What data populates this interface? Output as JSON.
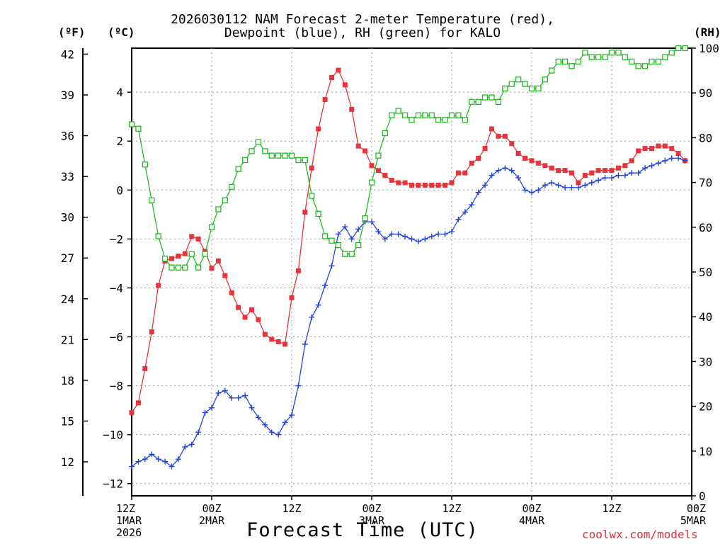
{
  "header": {
    "title_line1": "2026030112 NAM Forecast 2-meter Temperature (red),",
    "title_line2": "Dewpoint (blue), RH (green) for KALO",
    "unit_f": "(ºF)",
    "unit_c": "(ºC)",
    "unit_rh": "(RH)"
  },
  "footer": {
    "xlabel": "Forecast Time (UTC)",
    "credit": "coolwx.com/models"
  },
  "chart_data": {
    "type": "line",
    "title": "2026030112 NAM Forecast 2-meter Temperature (red), Dewpoint (blue), RH (green) for KALO",
    "xlabel": "Forecast Time (UTC)",
    "x_unit": "forecast hour",
    "xlim": [
      0,
      84
    ],
    "x_ticks": [
      {
        "hour": 0,
        "lines": [
          "12Z",
          "1MAR",
          "2026"
        ]
      },
      {
        "hour": 12,
        "lines": [
          "00Z",
          "2MAR"
        ]
      },
      {
        "hour": 24,
        "lines": [
          "12Z"
        ]
      },
      {
        "hour": 36,
        "lines": [
          "00Z",
          "3MAR"
        ]
      },
      {
        "hour": 48,
        "lines": [
          "12Z"
        ]
      },
      {
        "hour": 60,
        "lines": [
          "00Z",
          "4MAR"
        ]
      },
      {
        "hour": 72,
        "lines": [
          "12Z"
        ]
      },
      {
        "hour": 84,
        "lines": [
          "00Z",
          "5MAR"
        ]
      }
    ],
    "y_left_c": {
      "label": "(ºC)",
      "ylim": [
        -12.5,
        5.8
      ],
      "ticks": [
        4,
        2,
        0,
        -2,
        -4,
        -6,
        -8,
        -10,
        -12
      ],
      "tick_labels": [
        "4",
        "2",
        "0",
        "−2",
        "−4",
        "−6",
        "−8",
        "−10",
        "−12"
      ]
    },
    "y_left_f": {
      "label": "(ºF)",
      "ticks": [
        42,
        39,
        36,
        33,
        30,
        27,
        24,
        21,
        18,
        15,
        12
      ]
    },
    "y_right": {
      "label": "(RH)",
      "ylim": [
        0,
        100
      ],
      "ticks": [
        100,
        90,
        80,
        70,
        60,
        50,
        40,
        30,
        20,
        10,
        0
      ]
    },
    "grid": true,
    "series": [
      {
        "name": "2-meter Temperature",
        "units": "C",
        "axis": "left",
        "color": "#e8333b",
        "marker": "filled-square",
        "values": [
          -9.1,
          -8.7,
          -7.3,
          -5.8,
          -3.9,
          -2.9,
          -2.8,
          -2.7,
          -2.6,
          -1.9,
          -2.0,
          -2.5,
          -3.2,
          -2.9,
          -3.5,
          -4.2,
          -4.8,
          -5.2,
          -4.9,
          -5.3,
          -5.9,
          -6.1,
          -6.2,
          -6.3,
          -4.4,
          -3.3,
          -0.9,
          0.9,
          2.5,
          3.7,
          4.6,
          4.9,
          4.3,
          3.3,
          1.8,
          1.6,
          1.0,
          0.8,
          0.6,
          0.4,
          0.3,
          0.3,
          0.2,
          0.2,
          0.2,
          0.2,
          0.2,
          0.2,
          0.3,
          0.7,
          0.7,
          1.1,
          1.3,
          1.7,
          2.5,
          2.2,
          2.2,
          1.9,
          1.5,
          1.3,
          1.2,
          1.1,
          1.0,
          0.9,
          0.8,
          0.8,
          0.7,
          0.3,
          0.6,
          0.7,
          0.8,
          0.8,
          0.8,
          0.9,
          1.0,
          1.2,
          1.6,
          1.7,
          1.7,
          1.8,
          1.8,
          1.7,
          1.5,
          1.2
        ]
      },
      {
        "name": "Dewpoint",
        "units": "C",
        "axis": "left",
        "color": "#2244e0",
        "marker": "plus",
        "values": [
          -11.3,
          -11.1,
          -11.0,
          -10.8,
          -11.0,
          -11.1,
          -11.3,
          -11.0,
          -10.5,
          -10.4,
          -9.9,
          -9.1,
          -8.9,
          -8.3,
          -8.2,
          -8.5,
          -8.5,
          -8.4,
          -8.9,
          -9.3,
          -9.6,
          -9.9,
          -10.0,
          -9.5,
          -9.2,
          -8.0,
          -6.3,
          -5.2,
          -4.7,
          -3.9,
          -3.1,
          -1.8,
          -1.5,
          -2.0,
          -1.6,
          -1.3,
          -1.3,
          -1.7,
          -2.0,
          -1.8,
          -1.8,
          -1.9,
          -2.0,
          -2.1,
          -2.0,
          -1.9,
          -1.8,
          -1.8,
          -1.7,
          -1.2,
          -0.9,
          -0.6,
          -0.1,
          0.2,
          0.6,
          0.8,
          0.9,
          0.8,
          0.5,
          0.0,
          -0.1,
          0.0,
          0.2,
          0.3,
          0.2,
          0.1,
          0.1,
          0.1,
          0.2,
          0.3,
          0.4,
          0.5,
          0.5,
          0.6,
          0.6,
          0.7,
          0.7,
          0.9,
          1.0,
          1.1,
          1.2,
          1.3,
          1.3,
          1.2
        ]
      },
      {
        "name": "RH",
        "units": "%",
        "axis": "right",
        "color": "#22bb22",
        "marker": "open-square",
        "values": [
          83,
          82,
          74,
          66,
          58,
          53,
          51,
          51,
          51,
          54,
          51,
          54,
          60,
          64,
          66,
          69,
          73,
          75,
          77,
          79,
          77,
          76,
          76,
          76,
          76,
          75,
          75,
          67,
          63,
          58,
          57,
          56,
          54,
          54,
          56,
          62,
          70,
          76,
          81,
          85,
          86,
          85,
          84,
          85,
          85,
          85,
          84,
          84,
          85,
          85,
          84,
          88,
          88,
          89,
          89,
          88,
          91,
          92,
          93,
          92,
          91,
          91,
          93,
          95,
          97,
          97,
          96,
          97,
          99,
          98,
          98,
          98,
          99,
          99,
          98,
          97,
          96,
          96,
          97,
          97,
          98,
          99,
          100,
          100
        ]
      }
    ]
  }
}
